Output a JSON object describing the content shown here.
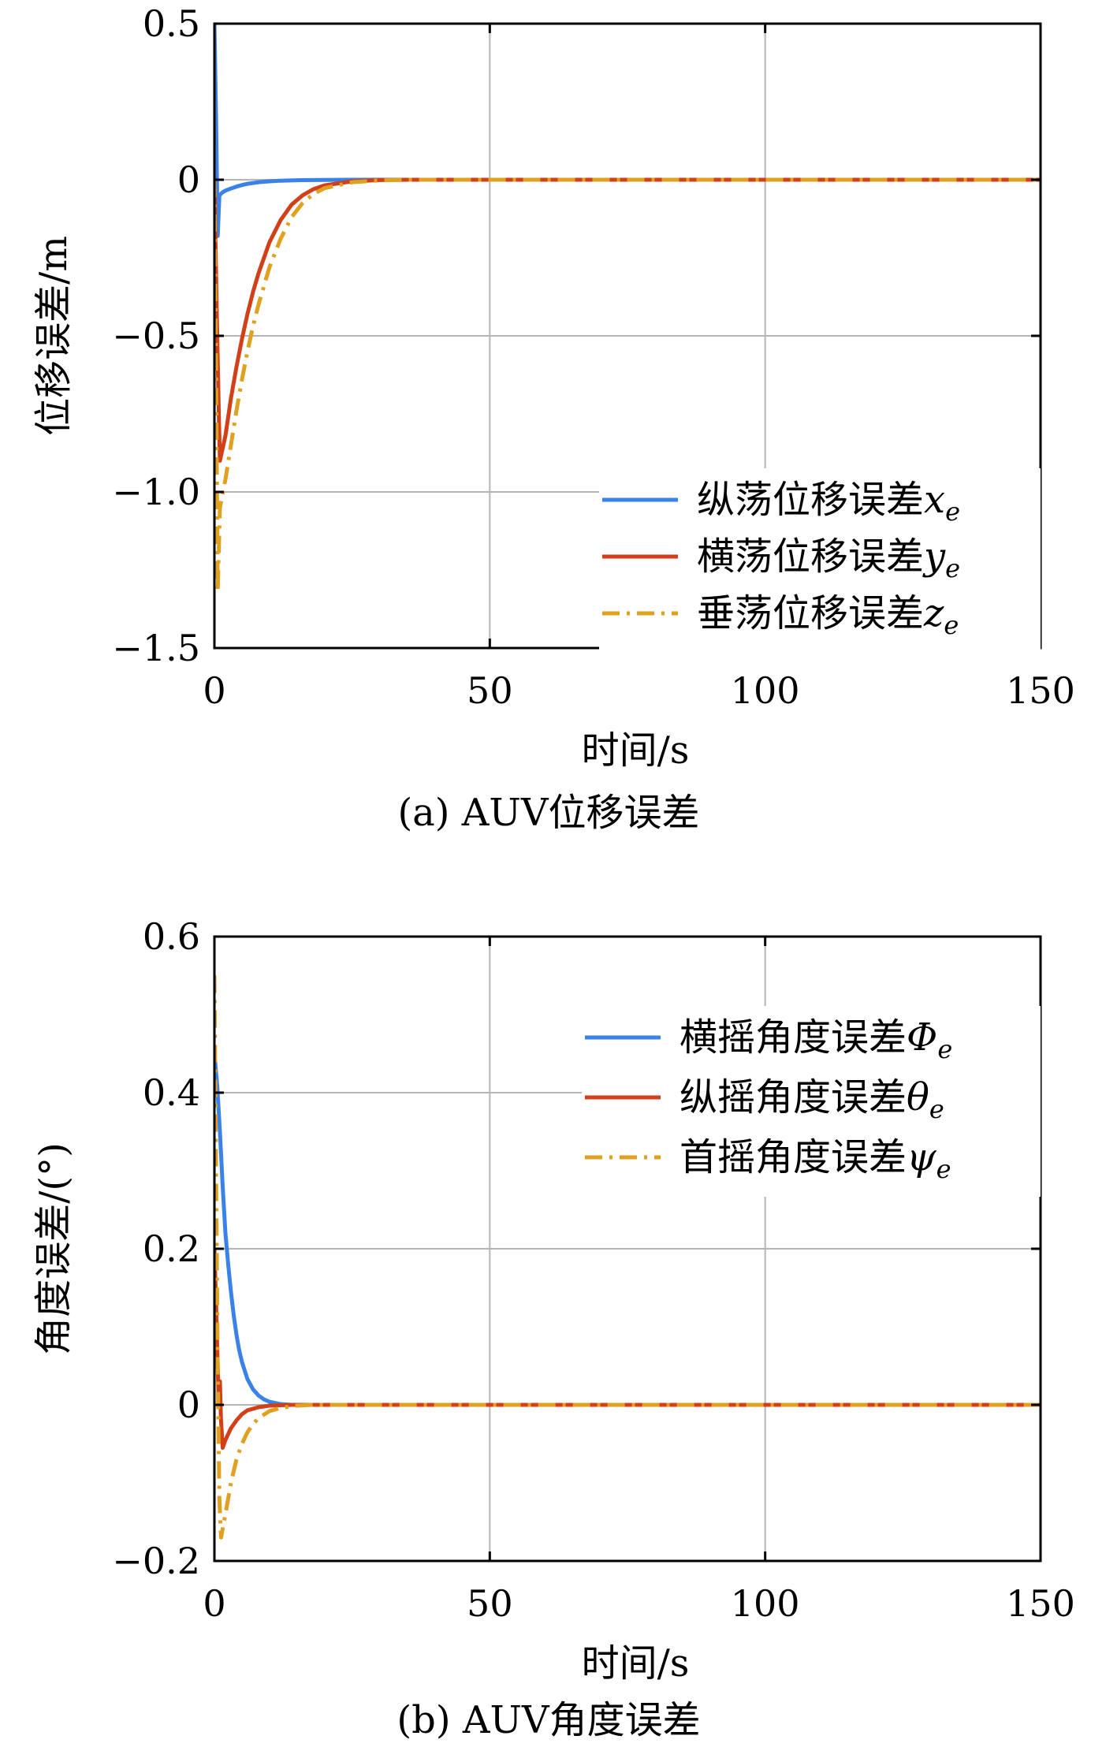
{
  "chart_data": [
    {
      "type": "line",
      "caption": "(a) AUV位移误差",
      "xlabel": "时间/s",
      "ylabel": "位移误差/m",
      "xlim": [
        0,
        150
      ],
      "ylim": [
        -1.5,
        0.5
      ],
      "xticks": [
        0,
        50,
        100,
        150
      ],
      "xtick_labels": [
        "0",
        "50",
        "100",
        "150"
      ],
      "yticks": [
        0.5,
        0,
        -0.5,
        -1.0,
        -1.5
      ],
      "ytick_labels": [
        "0.5",
        "0",
        "−0.5",
        "−1.0",
        "−1.5"
      ],
      "grid": true,
      "legend_position": "lower-right",
      "series": [
        {
          "name": "纵荡位移误差",
          "symbol": "x",
          "subscript": "e",
          "color": "#3b82e8",
          "style": "solid",
          "points": [
            [
              0,
              0.5
            ],
            [
              0.3,
              0.2
            ],
            [
              0.6,
              -0.18
            ],
            [
              0.9,
              -0.05
            ],
            [
              1.5,
              -0.04
            ],
            [
              2,
              -0.035
            ],
            [
              3,
              -0.028
            ],
            [
              4,
              -0.022
            ],
            [
              5,
              -0.017
            ],
            [
              6,
              -0.013
            ],
            [
              8,
              -0.008
            ],
            [
              10,
              -0.005
            ],
            [
              12,
              -0.003
            ],
            [
              15,
              -0.0015
            ],
            [
              20,
              -0.0005
            ],
            [
              25,
              0
            ],
            [
              30,
              0
            ],
            [
              150,
              0
            ]
          ]
        },
        {
          "name": "横荡位移误差",
          "symbol": "y",
          "subscript": "e",
          "color": "#d2401a",
          "style": "solid",
          "points": [
            [
              0,
              0
            ],
            [
              0.4,
              -0.4
            ],
            [
              0.8,
              -0.75
            ],
            [
              1.0,
              -0.9
            ],
            [
              2,
              -0.82
            ],
            [
              3,
              -0.7
            ],
            [
              4,
              -0.6
            ],
            [
              5,
              -0.51
            ],
            [
              6,
              -0.43
            ],
            [
              7,
              -0.36
            ],
            [
              8,
              -0.3
            ],
            [
              9,
              -0.25
            ],
            [
              10,
              -0.2
            ],
            [
              12,
              -0.13
            ],
            [
              14,
              -0.08
            ],
            [
              16,
              -0.05
            ],
            [
              18,
              -0.03
            ],
            [
              20,
              -0.018
            ],
            [
              25,
              -0.005
            ],
            [
              30,
              -0.001
            ],
            [
              35,
              0
            ],
            [
              150,
              0
            ]
          ]
        },
        {
          "name": "垂荡位移误差",
          "symbol": "z",
          "subscript": "e",
          "color": "#e0a020",
          "style": "dashdot",
          "points": [
            [
              0,
              0
            ],
            [
              0.3,
              -0.6
            ],
            [
              0.6,
              -1.32
            ],
            [
              1.0,
              -1.05
            ],
            [
              2,
              -0.96
            ],
            [
              3,
              -0.85
            ],
            [
              4,
              -0.74
            ],
            [
              5,
              -0.64
            ],
            [
              6,
              -0.55
            ],
            [
              7,
              -0.47
            ],
            [
              8,
              -0.4
            ],
            [
              9,
              -0.34
            ],
            [
              10,
              -0.28
            ],
            [
              12,
              -0.19
            ],
            [
              14,
              -0.12
            ],
            [
              16,
              -0.075
            ],
            [
              18,
              -0.045
            ],
            [
              20,
              -0.027
            ],
            [
              25,
              -0.008
            ],
            [
              30,
              -0.002
            ],
            [
              35,
              0
            ],
            [
              150,
              0
            ]
          ]
        }
      ]
    },
    {
      "type": "line",
      "caption": "(b) AUV角度误差",
      "xlabel": "时间/s",
      "ylabel": "角度误差/(°)",
      "xlim": [
        0,
        150
      ],
      "ylim": [
        -0.2,
        0.6
      ],
      "xticks": [
        0,
        50,
        100,
        150
      ],
      "xtick_labels": [
        "0",
        "50",
        "100",
        "150"
      ],
      "yticks": [
        0.6,
        0.4,
        0.2,
        0,
        -0.2
      ],
      "ytick_labels": [
        "0.6",
        "0.4",
        "0.2",
        "0",
        "−0.2"
      ],
      "grid": true,
      "legend_position": "upper-right",
      "series": [
        {
          "name": "横摇角度误差",
          "symbol": "Φ",
          "subscript": "e",
          "color": "#3b82e8",
          "style": "solid",
          "points": [
            [
              0,
              0.45
            ],
            [
              0.5,
              0.41
            ],
            [
              1,
              0.35
            ],
            [
              1.5,
              0.28
            ],
            [
              2,
              0.22
            ],
            [
              2.5,
              0.18
            ],
            [
              3,
              0.145
            ],
            [
              3.5,
              0.115
            ],
            [
              4,
              0.09
            ],
            [
              4.5,
              0.07
            ],
            [
              5,
              0.055
            ],
            [
              6,
              0.033
            ],
            [
              7,
              0.02
            ],
            [
              8,
              0.012
            ],
            [
              9,
              0.007
            ],
            [
              10,
              0.004
            ],
            [
              12,
              0.001
            ],
            [
              14,
              0
            ],
            [
              150,
              0
            ]
          ]
        },
        {
          "name": "纵摇角度误差",
          "symbol": "θ",
          "subscript": "e",
          "color": "#d2401a",
          "style": "solid",
          "points": [
            [
              0,
              0.2
            ],
            [
              0.3,
              0.13
            ],
            [
              0.6,
              0.05
            ],
            [
              0.8,
              0.0
            ],
            [
              1.0,
              0.03
            ],
            [
              1.2,
              -0.02
            ],
            [
              1.5,
              -0.055
            ],
            [
              2,
              -0.045
            ],
            [
              3,
              -0.03
            ],
            [
              4,
              -0.02
            ],
            [
              5,
              -0.012
            ],
            [
              6,
              -0.007
            ],
            [
              8,
              -0.003
            ],
            [
              10,
              -0.001
            ],
            [
              14,
              0
            ],
            [
              150,
              0
            ]
          ]
        },
        {
          "name": "首摇角度误差",
          "symbol": "ψ",
          "subscript": "e",
          "color": "#e0a020",
          "style": "dashdot",
          "points": [
            [
              0,
              0.55
            ],
            [
              0.3,
              0.3
            ],
            [
              0.6,
              0.05
            ],
            [
              0.9,
              -0.12
            ],
            [
              1.2,
              -0.17
            ],
            [
              2,
              -0.14
            ],
            [
              3,
              -0.1
            ],
            [
              4,
              -0.07
            ],
            [
              5,
              -0.05
            ],
            [
              6,
              -0.035
            ],
            [
              7,
              -0.025
            ],
            [
              8,
              -0.017
            ],
            [
              10,
              -0.008
            ],
            [
              12,
              -0.004
            ],
            [
              15,
              -0.001
            ],
            [
              18,
              0
            ],
            [
              150,
              0
            ]
          ]
        }
      ]
    }
  ]
}
